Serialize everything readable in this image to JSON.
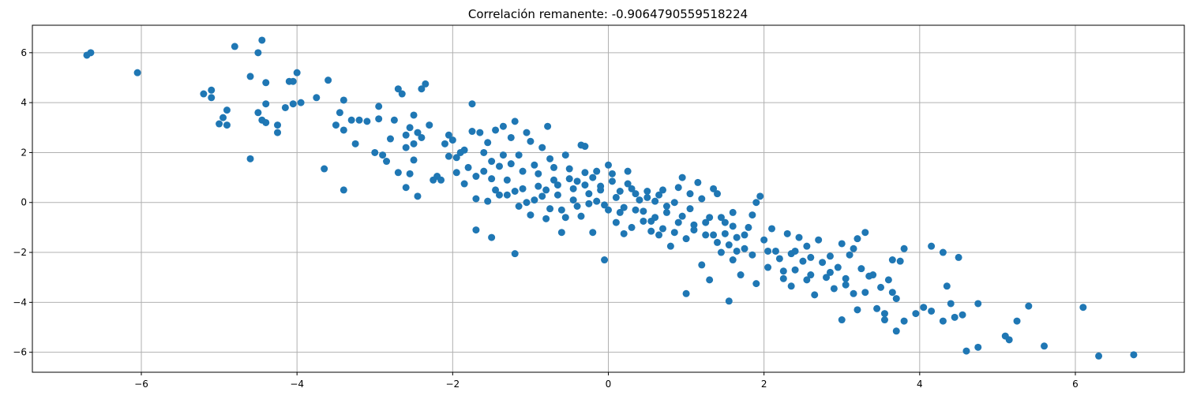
{
  "chart_data": {
    "type": "scatter",
    "title": "Correlación remanente: -0.9064790559518224",
    "xlabel": "",
    "ylabel": "",
    "xlim": [
      -7.4,
      7.4
    ],
    "ylim": [
      -6.8,
      7.1
    ],
    "x_ticks": [
      -6,
      -4,
      -2,
      0,
      2,
      4,
      6
    ],
    "y_ticks": [
      -6,
      -4,
      -2,
      0,
      2,
      4,
      6
    ],
    "grid": true,
    "color": "#1f77b4",
    "points": [
      [
        -6.7,
        5.9
      ],
      [
        -6.65,
        6.0
      ],
      [
        -6.05,
        5.2
      ],
      [
        -4.45,
        6.5
      ],
      [
        -4.8,
        6.25
      ],
      [
        -4.5,
        6.0
      ],
      [
        -5.2,
        4.35
      ],
      [
        -5.1,
        4.5
      ],
      [
        -5.1,
        4.2
      ],
      [
        -4.0,
        5.2
      ],
      [
        -4.6,
        5.05
      ],
      [
        -4.1,
        4.85
      ],
      [
        -4.4,
        4.8
      ],
      [
        -4.05,
        4.85
      ],
      [
        -3.6,
        4.9
      ],
      [
        -4.4,
        3.95
      ],
      [
        -4.05,
        3.95
      ],
      [
        -3.95,
        4.0
      ],
      [
        -3.75,
        4.2
      ],
      [
        -4.15,
        3.8
      ],
      [
        -4.5,
        3.6
      ],
      [
        -4.45,
        3.3
      ],
      [
        -4.4,
        3.2
      ],
      [
        -4.9,
        3.7
      ],
      [
        -4.95,
        3.4
      ],
      [
        -5.0,
        3.15
      ],
      [
        -4.9,
        3.1
      ],
      [
        -4.25,
        3.1
      ],
      [
        -4.25,
        2.8
      ],
      [
        -4.6,
        1.75
      ],
      [
        -3.65,
        1.35
      ],
      [
        -3.4,
        0.5
      ],
      [
        -3.4,
        4.1
      ],
      [
        -3.45,
        3.6
      ],
      [
        -3.5,
        3.1
      ],
      [
        -3.4,
        2.9
      ],
      [
        -3.3,
        3.3
      ],
      [
        -3.25,
        2.35
      ],
      [
        -3.2,
        3.3
      ],
      [
        -3.1,
        3.25
      ],
      [
        -3.0,
        2.0
      ],
      [
        -2.95,
        3.85
      ],
      [
        -2.95,
        3.35
      ],
      [
        -2.85,
        1.65
      ],
      [
        -2.8,
        2.55
      ],
      [
        -2.75,
        3.3
      ],
      [
        -2.7,
        4.55
      ],
      [
        -2.65,
        4.35
      ],
      [
        -2.6,
        2.2
      ],
      [
        -2.55,
        3.0
      ],
      [
        -2.5,
        3.5
      ],
      [
        -2.5,
        2.35
      ],
      [
        -2.4,
        4.55
      ],
      [
        -2.35,
        4.75
      ],
      [
        -2.45,
        2.8
      ],
      [
        -2.4,
        2.6
      ],
      [
        -2.5,
        1.7
      ],
      [
        -2.55,
        1.15
      ],
      [
        -2.6,
        0.6
      ],
      [
        -2.45,
        0.25
      ],
      [
        -2.2,
        1.05
      ],
      [
        -2.15,
        0.9
      ],
      [
        -2.1,
        2.35
      ],
      [
        -2.05,
        2.7
      ],
      [
        -2.0,
        2.5
      ],
      [
        -1.95,
        1.8
      ],
      [
        -1.9,
        2.0
      ],
      [
        -1.85,
        2.1
      ],
      [
        -1.8,
        1.4
      ],
      [
        -1.75,
        3.95
      ],
      [
        -1.75,
        2.85
      ],
      [
        -1.7,
        1.05
      ],
      [
        -1.7,
        0.15
      ],
      [
        -1.7,
        -1.1
      ],
      [
        -1.65,
        2.8
      ],
      [
        -1.6,
        2.0
      ],
      [
        -1.55,
        2.4
      ],
      [
        -1.5,
        1.65
      ],
      [
        -1.5,
        0.95
      ],
      [
        -1.45,
        0.5
      ],
      [
        -1.5,
        -1.4
      ],
      [
        -1.4,
        1.45
      ],
      [
        -1.35,
        3.05
      ],
      [
        -1.3,
        0.3
      ],
      [
        -1.25,
        2.6
      ],
      [
        -1.2,
        3.25
      ],
      [
        -1.2,
        -2.05
      ],
      [
        -1.15,
        1.9
      ],
      [
        -1.1,
        0.55
      ],
      [
        -1.05,
        0.0
      ],
      [
        -1.0,
        2.45
      ],
      [
        -0.95,
        1.5
      ],
      [
        -0.9,
        0.65
      ],
      [
        -0.85,
        0.25
      ],
      [
        -0.8,
        -0.65
      ],
      [
        -0.78,
        3.05
      ],
      [
        -0.75,
        1.75
      ],
      [
        -0.7,
        0.9
      ],
      [
        -0.65,
        0.3
      ],
      [
        -0.6,
        -0.3
      ],
      [
        -0.6,
        -1.2
      ],
      [
        -0.55,
        1.9
      ],
      [
        -0.5,
        0.95
      ],
      [
        -0.45,
        0.55
      ],
      [
        -0.4,
        -0.15
      ],
      [
        -0.35,
        2.3
      ],
      [
        -0.3,
        2.25
      ],
      [
        -0.3,
        0.7
      ],
      [
        -0.25,
        -0.05
      ],
      [
        -0.2,
        -1.2
      ],
      [
        -0.15,
        1.25
      ],
      [
        -0.1,
        0.5
      ],
      [
        -0.05,
        -0.1
      ],
      [
        -0.05,
        -2.3
      ],
      [
        0.0,
        1.5
      ],
      [
        0.05,
        0.85
      ],
      [
        0.1,
        0.2
      ],
      [
        0.15,
        -0.4
      ],
      [
        0.2,
        -1.25
      ],
      [
        0.25,
        1.25
      ],
      [
        0.3,
        0.55
      ],
      [
        0.35,
        -0.3
      ],
      [
        0.4,
        0.1
      ],
      [
        0.45,
        -0.75
      ],
      [
        0.5,
        0.45
      ],
      [
        0.55,
        -1.15
      ],
      [
        0.6,
        -0.6
      ],
      [
        0.65,
        0.3
      ],
      [
        0.7,
        -1.05
      ],
      [
        0.75,
        -0.4
      ],
      [
        0.8,
        -1.75
      ],
      [
        0.85,
        0.0
      ],
      [
        0.9,
        -0.8
      ],
      [
        0.95,
        1.0
      ],
      [
        1.0,
        -1.45
      ],
      [
        1.0,
        -3.65
      ],
      [
        1.05,
        -0.25
      ],
      [
        1.1,
        -0.9
      ],
      [
        1.15,
        0.8
      ],
      [
        1.2,
        -2.5
      ],
      [
        1.25,
        -1.3
      ],
      [
        1.3,
        -0.6
      ],
      [
        1.3,
        -3.1
      ],
      [
        1.35,
        0.55
      ],
      [
        1.4,
        -1.6
      ],
      [
        1.45,
        -2.0
      ],
      [
        1.5,
        -0.8
      ],
      [
        1.55,
        -1.7
      ],
      [
        1.55,
        -3.95
      ],
      [
        1.6,
        -2.3
      ],
      [
        1.6,
        -0.4
      ],
      [
        1.65,
        -1.4
      ],
      [
        1.7,
        -2.9
      ],
      [
        1.75,
        -1.85
      ],
      [
        1.8,
        -1.0
      ],
      [
        1.85,
        -2.1
      ],
      [
        1.9,
        0.0
      ],
      [
        1.9,
        -3.25
      ],
      [
        1.95,
        0.25
      ],
      [
        2.0,
        -1.5
      ],
      [
        2.05,
        -2.6
      ],
      [
        2.1,
        -1.05
      ],
      [
        2.15,
        -1.95
      ],
      [
        2.2,
        -2.25
      ],
      [
        2.25,
        -3.05
      ],
      [
        2.3,
        -1.25
      ],
      [
        2.35,
        -2.05
      ],
      [
        2.35,
        -3.35
      ],
      [
        2.4,
        -2.7
      ],
      [
        2.45,
        -1.4
      ],
      [
        2.5,
        -2.35
      ],
      [
        2.55,
        -1.75
      ],
      [
        2.6,
        -2.9
      ],
      [
        2.65,
        -3.7
      ],
      [
        2.7,
        -1.5
      ],
      [
        2.75,
        -2.4
      ],
      [
        2.8,
        -3.0
      ],
      [
        2.85,
        -2.15
      ],
      [
        2.9,
        -3.45
      ],
      [
        2.95,
        -2.6
      ],
      [
        3.0,
        -1.65
      ],
      [
        3.0,
        -4.7
      ],
      [
        3.05,
        -3.3
      ],
      [
        3.1,
        -2.1
      ],
      [
        3.15,
        -3.65
      ],
      [
        3.2,
        -1.45
      ],
      [
        3.2,
        -4.3
      ],
      [
        3.25,
        -2.65
      ],
      [
        3.3,
        -3.6
      ],
      [
        3.3,
        -1.2
      ],
      [
        3.4,
        -2.9
      ],
      [
        3.5,
        -3.4
      ],
      [
        3.55,
        -4.45
      ],
      [
        3.55,
        -4.7
      ],
      [
        3.6,
        -3.1
      ],
      [
        3.65,
        -2.3
      ],
      [
        3.7,
        -3.85
      ],
      [
        3.7,
        -5.15
      ],
      [
        3.75,
        -2.35
      ],
      [
        3.8,
        -1.85
      ],
      [
        3.8,
        -4.75
      ],
      [
        3.95,
        -4.45
      ],
      [
        4.05,
        -4.2
      ],
      [
        4.15,
        -4.35
      ],
      [
        4.15,
        -1.75
      ],
      [
        4.3,
        -2.0
      ],
      [
        4.3,
        -4.75
      ],
      [
        4.35,
        -3.35
      ],
      [
        4.4,
        -4.05
      ],
      [
        4.45,
        -4.6
      ],
      [
        4.5,
        -2.2
      ],
      [
        4.55,
        -4.5
      ],
      [
        4.6,
        -5.95
      ],
      [
        4.75,
        -5.8
      ],
      [
        4.75,
        -4.05
      ],
      [
        5.1,
        -5.35
      ],
      [
        5.15,
        -5.5
      ],
      [
        5.25,
        -4.75
      ],
      [
        5.6,
        -5.75
      ],
      [
        5.4,
        -4.15
      ],
      [
        6.1,
        -4.2
      ],
      [
        6.3,
        -6.15
      ],
      [
        6.75,
        -6.1
      ],
      [
        -2.9,
        1.9
      ],
      [
        -2.7,
        1.2
      ],
      [
        -2.6,
        2.7
      ],
      [
        -2.3,
        3.1
      ],
      [
        -2.25,
        0.9
      ],
      [
        -2.05,
        1.85
      ],
      [
        -1.95,
        1.2
      ],
      [
        -1.85,
        0.75
      ],
      [
        -1.6,
        1.25
      ],
      [
        -1.55,
        0.05
      ],
      [
        -1.45,
        2.9
      ],
      [
        -1.4,
        0.3
      ],
      [
        -1.35,
        1.9
      ],
      [
        -1.3,
        0.9
      ],
      [
        -1.25,
        1.55
      ],
      [
        -1.2,
        0.45
      ],
      [
        -1.15,
        -0.15
      ],
      [
        -1.1,
        1.25
      ],
      [
        -1.05,
        2.8
      ],
      [
        -1.0,
        -0.5
      ],
      [
        -0.95,
        0.1
      ],
      [
        -0.9,
        1.15
      ],
      [
        -0.85,
        2.2
      ],
      [
        -0.8,
        0.5
      ],
      [
        -0.75,
        -0.25
      ],
      [
        -0.7,
        1.4
      ],
      [
        -0.65,
        0.7
      ],
      [
        -0.55,
        -0.6
      ],
      [
        -0.5,
        1.35
      ],
      [
        -0.45,
        0.1
      ],
      [
        -0.4,
        0.85
      ],
      [
        -0.35,
        -0.55
      ],
      [
        -0.3,
        1.2
      ],
      [
        -0.25,
        0.35
      ],
      [
        -0.2,
        1.0
      ],
      [
        -0.15,
        0.05
      ],
      [
        -0.1,
        0.65
      ],
      [
        0.0,
        -0.3
      ],
      [
        0.05,
        1.15
      ],
      [
        0.1,
        -0.8
      ],
      [
        0.15,
        0.45
      ],
      [
        0.2,
        -0.2
      ],
      [
        0.25,
        0.75
      ],
      [
        0.3,
        -1.0
      ],
      [
        0.35,
        0.35
      ],
      [
        0.45,
        -0.35
      ],
      [
        0.5,
        0.2
      ],
      [
        0.55,
        -0.75
      ],
      [
        0.6,
        0.05
      ],
      [
        0.65,
        -1.3
      ],
      [
        0.7,
        0.5
      ],
      [
        0.75,
        -0.15
      ],
      [
        0.85,
        -1.2
      ],
      [
        0.9,
        0.6
      ],
      [
        0.95,
        -0.55
      ],
      [
        1.05,
        0.35
      ],
      [
        1.1,
        -1.1
      ],
      [
        1.2,
        0.15
      ],
      [
        1.25,
        -0.8
      ],
      [
        1.35,
        -1.3
      ],
      [
        1.4,
        0.35
      ],
      [
        1.45,
        -0.6
      ],
      [
        1.5,
        -1.25
      ],
      [
        1.6,
        -0.95
      ],
      [
        1.65,
        -1.95
      ],
      [
        1.75,
        -1.3
      ],
      [
        1.85,
        -0.5
      ],
      [
        2.05,
        -1.95
      ],
      [
        2.25,
        -2.75
      ],
      [
        2.4,
        -1.95
      ],
      [
        2.55,
        -3.1
      ],
      [
        2.6,
        -2.2
      ],
      [
        2.85,
        -2.8
      ],
      [
        3.05,
        -3.05
      ],
      [
        3.15,
        -1.85
      ],
      [
        3.35,
        -2.95
      ],
      [
        3.45,
        -4.25
      ],
      [
        3.65,
        -3.6
      ]
    ]
  }
}
